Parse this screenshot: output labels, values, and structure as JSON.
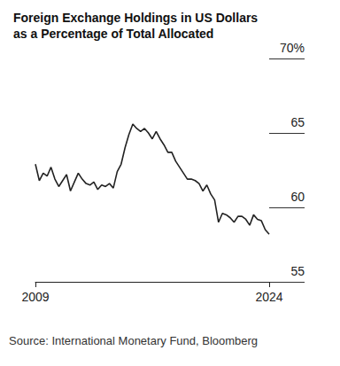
{
  "chart_data": {
    "type": "line",
    "title": "Foreign Exchange Holdings in US Dollars\nas a Percentage of Total Allocated",
    "source": "Source: International Monetary Fund, Bloomberg",
    "color": "#222222",
    "grid": false,
    "categories": [
      "2009",
      null,
      null,
      null,
      null,
      null,
      null,
      null,
      null,
      null,
      null,
      null,
      null,
      null,
      null,
      null,
      null,
      null,
      null,
      null,
      null,
      null,
      null,
      null,
      null,
      null,
      null,
      null,
      null,
      null,
      null,
      null,
      null,
      null,
      null,
      null,
      null,
      null,
      null,
      null,
      null,
      null,
      null,
      null,
      null,
      null,
      null,
      null,
      null,
      null,
      null,
      null,
      null,
      null,
      null,
      null,
      null,
      null,
      null,
      null,
      "2024"
    ],
    "values": [
      62.9,
      61.8,
      62.3,
      62.1,
      62.7,
      61.9,
      61.4,
      61.8,
      62.2,
      61.1,
      61.7,
      62.3,
      61.9,
      61.6,
      61.5,
      61.7,
      61.2,
      61.5,
      61.4,
      61.6,
      61.3,
      62.4,
      62.9,
      64.0,
      64.9,
      65.6,
      65.3,
      65.1,
      65.3,
      65.0,
      64.6,
      65.1,
      64.6,
      64.2,
      63.7,
      63.7,
      63.1,
      62.7,
      62.3,
      61.9,
      61.9,
      61.8,
      61.6,
      61.1,
      61.5,
      60.9,
      60.5,
      59.0,
      59.6,
      59.5,
      59.3,
      59.0,
      59.4,
      59.4,
      59.2,
      58.8,
      59.5,
      59.2,
      59.1,
      58.5,
      58.2
    ],
    "ylim": [
      55,
      70
    ],
    "yticks": [
      55,
      60,
      65,
      {
        "value": 70,
        "label": "70%"
      }
    ]
  }
}
